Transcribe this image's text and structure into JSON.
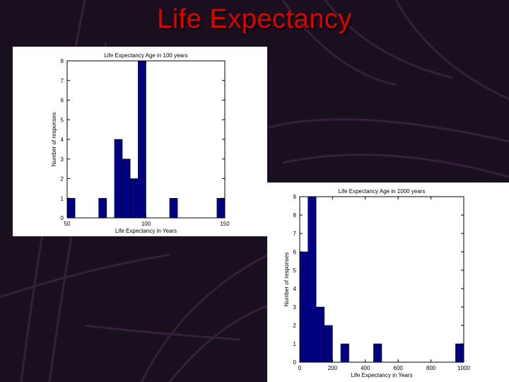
{
  "slide": {
    "title": "Life Expectancy"
  },
  "colors": {
    "bar": "#000080",
    "title": "#e00000",
    "background": "#1a0f1e"
  },
  "chart_data": [
    {
      "type": "bar",
      "title": "Life Expectancy Age in 100 years",
      "xlabel": "Life Expectancy in Years",
      "ylabel": "Number of responses",
      "xlim": [
        50,
        150
      ],
      "ylim": [
        0,
        8
      ],
      "xticks": [
        50,
        100,
        150
      ],
      "yticks": [
        0,
        1,
        2,
        3,
        4,
        5,
        6,
        7,
        8
      ],
      "bins": [
        {
          "x0": 50,
          "x1": 55,
          "value": 1
        },
        {
          "x0": 70,
          "x1": 75,
          "value": 1
        },
        {
          "x0": 80,
          "x1": 85,
          "value": 4
        },
        {
          "x0": 85,
          "x1": 90,
          "value": 3
        },
        {
          "x0": 90,
          "x1": 95,
          "value": 2
        },
        {
          "x0": 95,
          "x1": 100,
          "value": 8
        },
        {
          "x0": 115,
          "x1": 120,
          "value": 1
        },
        {
          "x0": 145,
          "x1": 150,
          "value": 1
        }
      ]
    },
    {
      "type": "bar",
      "title": "Life Expectancy Age in 1000 years",
      "xlabel": "Life Expectancy in Years",
      "ylabel": "Number of responses",
      "xlim": [
        0,
        1000
      ],
      "ylim": [
        0,
        9
      ],
      "xticks": [
        0,
        200,
        400,
        600,
        800,
        1000
      ],
      "yticks": [
        0,
        1,
        2,
        3,
        4,
        5,
        6,
        7,
        8,
        9
      ],
      "bins": [
        {
          "x0": 0,
          "x1": 50,
          "value": 6
        },
        {
          "x0": 50,
          "x1": 100,
          "value": 9
        },
        {
          "x0": 100,
          "x1": 150,
          "value": 3
        },
        {
          "x0": 150,
          "x1": 200,
          "value": 2
        },
        {
          "x0": 250,
          "x1": 300,
          "value": 1
        },
        {
          "x0": 450,
          "x1": 500,
          "value": 1
        },
        {
          "x0": 950,
          "x1": 1000,
          "value": 1
        }
      ]
    }
  ]
}
